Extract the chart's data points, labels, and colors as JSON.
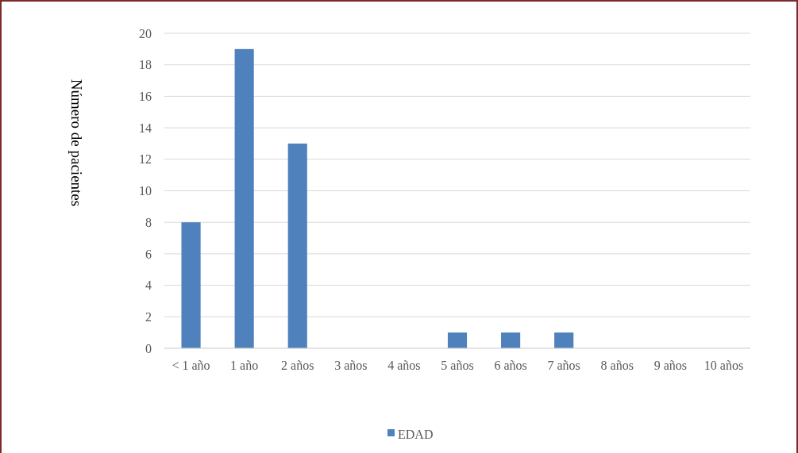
{
  "chart_data": {
    "type": "bar",
    "ylabel": "Número de pacientes",
    "categories": [
      "< 1 año",
      "1 año",
      "2 años",
      "3 años",
      "4 años",
      "5 años",
      "6 años",
      "7 años",
      "8 años",
      "9 años",
      "10 años"
    ],
    "series": [
      {
        "name": "EDAD",
        "color": "#4f81bd",
        "values": [
          8,
          19,
          13,
          0,
          0,
          1,
          1,
          1,
          0,
          0,
          0
        ]
      }
    ],
    "ylim": [
      0,
      20
    ],
    "yticks": [
      0,
      2,
      4,
      6,
      8,
      10,
      12,
      14,
      16,
      18,
      20
    ],
    "grid": "y",
    "legend": "bottom"
  }
}
